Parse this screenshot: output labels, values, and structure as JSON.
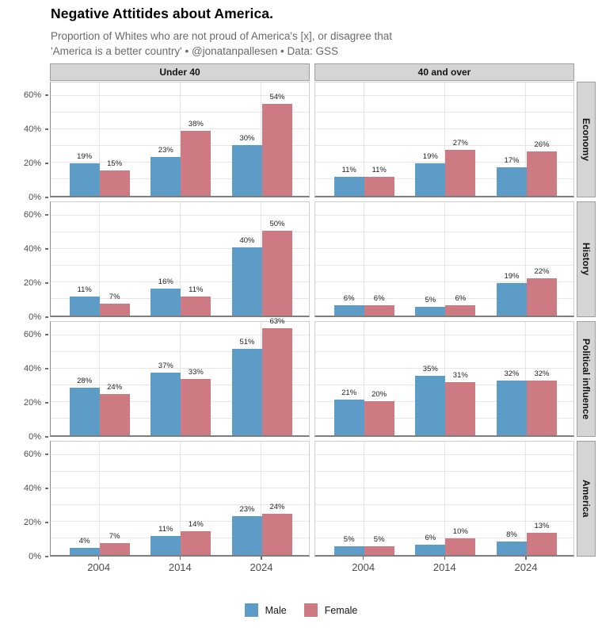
{
  "chart_data": {
    "type": "bar",
    "title": "Negative Attitides about America.",
    "subtitle_lines": [
      "Proportion of Whites who are not proud of America's [x], or disagree that",
      "'America is a better country' • @jonatanpallesen • Data: GSS"
    ],
    "facet_columns": [
      "Under 40",
      "40 and over"
    ],
    "facet_rows": [
      "Economy",
      "History",
      "Political influence",
      "America"
    ],
    "categories": [
      "2004",
      "2014",
      "2024"
    ],
    "series": [
      {
        "name": "Male",
        "color": "#5e9cc8"
      },
      {
        "name": "Female",
        "color": "#cd7a82"
      }
    ],
    "value_suffix": "%",
    "ylim": [
      0,
      68
    ],
    "yticks": [
      {
        "value": 0,
        "label": "0%"
      },
      {
        "value": 20,
        "label": "20%"
      },
      {
        "value": 40,
        "label": "40%"
      },
      {
        "value": 60,
        "label": "60%"
      }
    ],
    "grid_values": [
      10,
      20,
      30,
      40,
      50,
      60
    ],
    "grid": true,
    "legend_position": "bottom",
    "panels": [
      {
        "row": "Economy",
        "col": "Under 40",
        "values": {
          "Male": [
            19,
            23,
            30
          ],
          "Female": [
            15,
            38,
            54
          ]
        }
      },
      {
        "row": "Economy",
        "col": "40 and over",
        "values": {
          "Male": [
            11,
            19,
            17
          ],
          "Female": [
            11,
            27,
            26
          ]
        }
      },
      {
        "row": "History",
        "col": "Under 40",
        "values": {
          "Male": [
            11,
            16,
            40
          ],
          "Female": [
            7,
            11,
            50
          ]
        }
      },
      {
        "row": "History",
        "col": "40 and over",
        "values": {
          "Male": [
            6,
            5,
            19
          ],
          "Female": [
            6,
            6,
            22
          ]
        }
      },
      {
        "row": "Political influence",
        "col": "Under 40",
        "values": {
          "Male": [
            28,
            37,
            51
          ],
          "Female": [
            24,
            33,
            63
          ]
        }
      },
      {
        "row": "Political influence",
        "col": "40 and over",
        "values": {
          "Male": [
            21,
            35,
            32
          ],
          "Female": [
            20,
            31,
            32
          ]
        }
      },
      {
        "row": "America",
        "col": "Under 40",
        "values": {
          "Male": [
            4,
            11,
            23
          ],
          "Female": [
            7,
            14,
            24
          ]
        }
      },
      {
        "row": "America",
        "col": "40 and over",
        "values": {
          "Male": [
            5,
            6,
            8
          ],
          "Female": [
            5,
            10,
            13
          ]
        }
      }
    ]
  }
}
